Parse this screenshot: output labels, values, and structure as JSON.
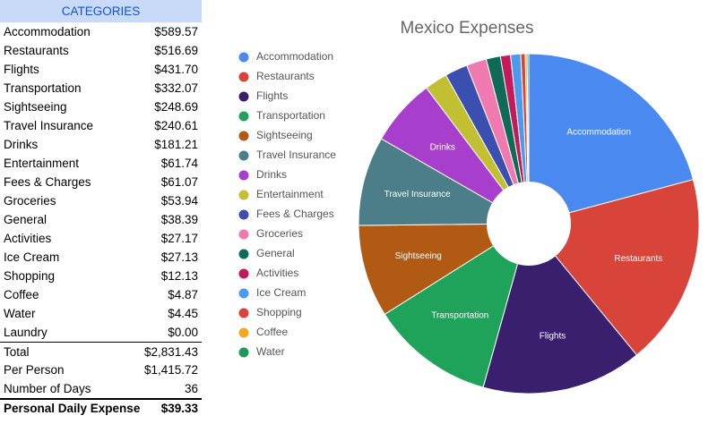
{
  "table": {
    "header": "CATEGORIES",
    "rows": [
      [
        "Accommodation",
        "$589.57"
      ],
      [
        "Restaurants",
        "$516.69"
      ],
      [
        "Flights",
        "$431.70"
      ],
      [
        "Transportation",
        "$332.07"
      ],
      [
        "Sightseeing",
        "$248.69"
      ],
      [
        "Travel Insurance",
        "$240.61"
      ],
      [
        "Drinks",
        "$181.21"
      ],
      [
        "Entertainment",
        "$61.74"
      ],
      [
        "Fees & Charges",
        "$61.07"
      ],
      [
        "Groceries",
        "$53.94"
      ],
      [
        "General",
        "$38.39"
      ],
      [
        "Activities",
        "$27.17"
      ],
      [
        "Ice Cream",
        "$27.13"
      ],
      [
        "Shopping",
        "$12.13"
      ],
      [
        "Coffee",
        "$4.87"
      ],
      [
        "Water",
        "$4.45"
      ],
      [
        "Laundry",
        "$0.00"
      ]
    ],
    "summary": [
      [
        "Total",
        "$2,831.43"
      ],
      [
        "Per Person",
        "$1,415.72"
      ],
      [
        "Number of Days",
        "36"
      ]
    ],
    "footer": [
      "Personal Daily Expense",
      "$39.33"
    ]
  },
  "chart_data": {
    "type": "pie",
    "title": "Mexico Expenses",
    "categories": [
      "Accommodation",
      "Restaurants",
      "Flights",
      "Transportation",
      "Sightseeing",
      "Travel Insurance",
      "Drinks",
      "Entertainment",
      "Fees & Charges",
      "Groceries",
      "General",
      "Activities",
      "Ice Cream",
      "Shopping",
      "Coffee",
      "Water"
    ],
    "values": [
      589.57,
      516.69,
      431.7,
      332.07,
      248.69,
      240.61,
      181.21,
      61.74,
      61.07,
      53.94,
      38.39,
      27.17,
      27.13,
      12.13,
      4.87,
      4.45
    ],
    "colors": [
      "#4a89f0",
      "#d9443a",
      "#3a1f6e",
      "#1fa35b",
      "#b05a14",
      "#4b7e88",
      "#a83fcc",
      "#c2bf33",
      "#3a4fb0",
      "#f07ab0",
      "#0f6b57",
      "#c4195a",
      "#4a9af0",
      "#d9443a",
      "#f0a820",
      "#1e9a58"
    ],
    "legend": "left"
  }
}
